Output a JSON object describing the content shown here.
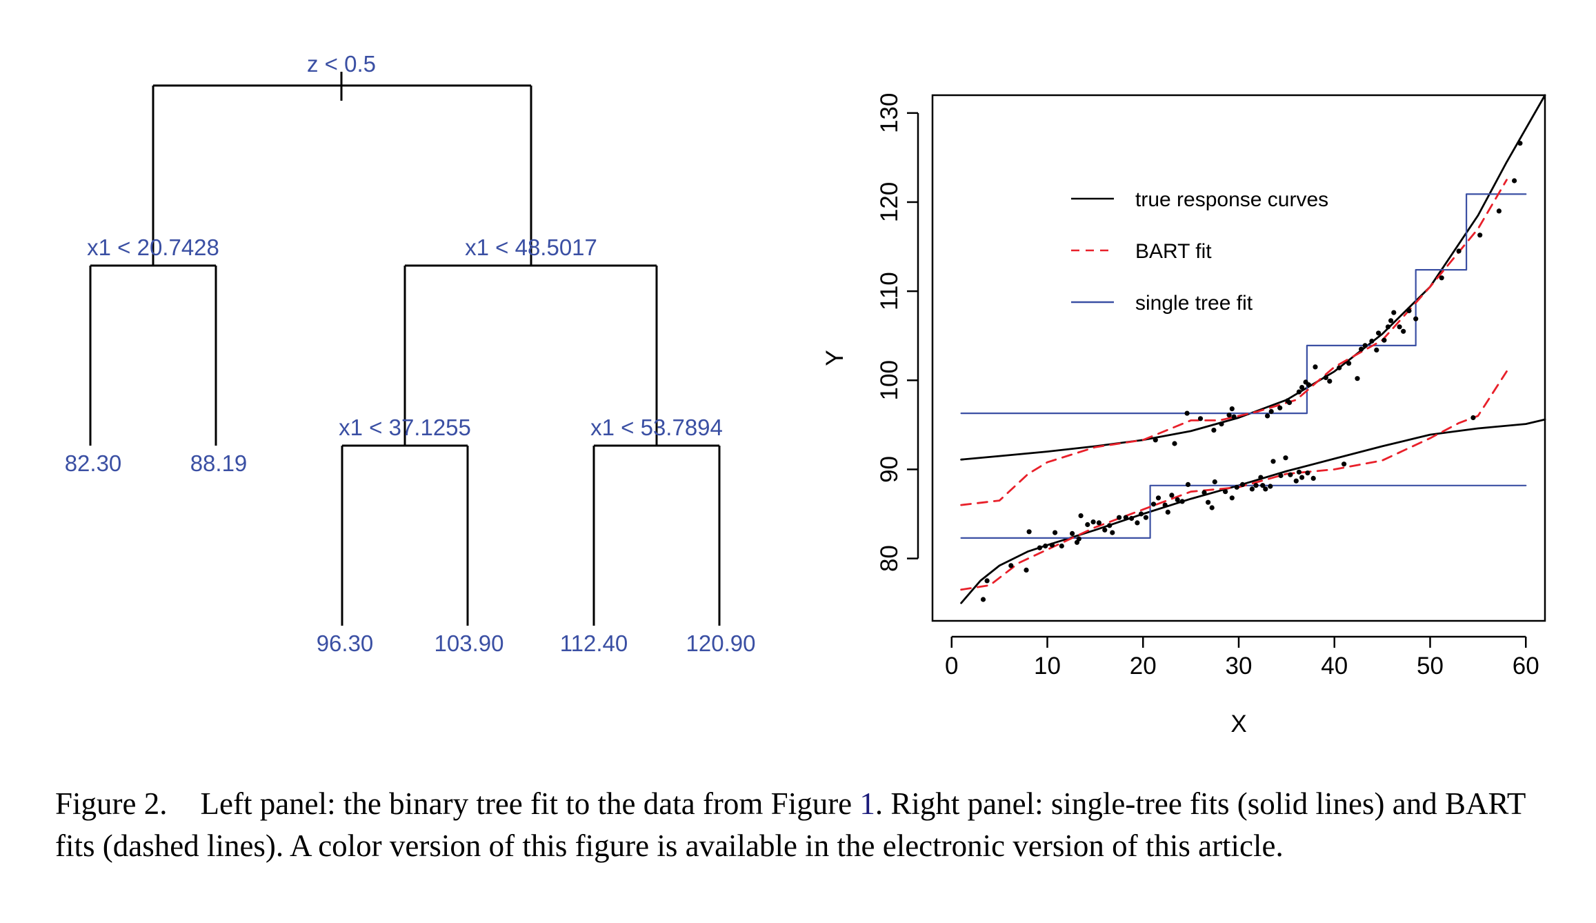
{
  "tree": {
    "root": {
      "split": "z < 0.5",
      "left": {
        "split": "x1 < 20.7428",
        "left": {
          "leaf": "82.30"
        },
        "right": {
          "leaf": "88.19"
        }
      },
      "right": {
        "split": "x1 < 48.5017",
        "left": {
          "split": "x1 < 37.1255",
          "left": {
            "leaf": "96.30"
          },
          "right": {
            "leaf": "103.90"
          }
        },
        "right": {
          "split": "x1 < 53.7894",
          "left": {
            "leaf": "112.40"
          },
          "right": {
            "leaf": "120.90"
          }
        }
      }
    }
  },
  "chart_data": {
    "type": "line",
    "xlabel": "X",
    "ylabel": "Y",
    "xlim": [
      -2,
      62
    ],
    "ylim": [
      73,
      132
    ],
    "xticks": [
      0,
      10,
      20,
      30,
      40,
      50,
      60
    ],
    "yticks": [
      80,
      90,
      100,
      110,
      120,
      130
    ],
    "grid": false,
    "legend_position": "top-left",
    "colors": {
      "truth": "#000000",
      "bart": "#e8202a",
      "tree": "#3a4fa3",
      "points": "#000000"
    },
    "legend": [
      {
        "label": "true response curves",
        "series": "truth"
      },
      {
        "label": "BART fit",
        "series": "bart"
      },
      {
        "label": "single tree fit",
        "series": "tree"
      }
    ],
    "series": [
      {
        "name": "true response curves",
        "key": "truth",
        "style": "solid",
        "x": [
          1,
          5,
          10,
          15,
          20,
          25,
          30,
          35,
          40,
          45,
          50,
          55,
          58,
          62
        ],
        "y": [
          91.1,
          91.5,
          92,
          92.6,
          93.3,
          94.3,
          95.8,
          97.8,
          101,
          105.2,
          110.5,
          118.5,
          124.5,
          132
        ]
      },
      {
        "name": "",
        "key": "truth",
        "style": "solid",
        "x": [
          1,
          3,
          5,
          8,
          10,
          15,
          20,
          25,
          30,
          35,
          40,
          45,
          50,
          55,
          60,
          62
        ],
        "y": [
          75,
          77.5,
          79.2,
          80.8,
          81.5,
          83.2,
          85,
          86.7,
          88.2,
          89.8,
          91.2,
          92.6,
          93.9,
          94.6,
          95.1,
          95.6
        ]
      },
      {
        "name": "single tree fit",
        "key": "tree",
        "style": "step",
        "x": [
          1,
          37.1255,
          37.1255,
          48.5017,
          48.5017,
          53.7894,
          53.7894,
          60
        ],
        "y": [
          96.3,
          96.3,
          103.9,
          103.9,
          112.4,
          112.4,
          120.9,
          120.9
        ]
      },
      {
        "name": "",
        "key": "tree",
        "style": "step",
        "x": [
          1,
          20.7428,
          20.7428,
          60
        ],
        "y": [
          82.3,
          82.3,
          88.19,
          88.19
        ]
      },
      {
        "name": "BART fit",
        "key": "bart",
        "style": "dashed",
        "x": [
          1,
          5,
          8,
          10,
          15,
          20,
          25,
          28,
          32,
          36,
          40,
          45,
          50,
          55,
          58
        ],
        "y": [
          86,
          86.5,
          89.5,
          90.8,
          92.5,
          93.3,
          95.5,
          95.5,
          96.5,
          97.8,
          101.5,
          104.5,
          110.5,
          117,
          122.5
        ]
      },
      {
        "name": "",
        "key": "bart",
        "style": "dashed",
        "x": [
          1,
          4,
          7,
          10,
          15,
          20,
          25,
          30,
          35,
          40,
          45,
          50,
          53,
          55,
          58
        ],
        "y": [
          76.5,
          77,
          79.5,
          81,
          83.5,
          85.5,
          87.5,
          88,
          89.5,
          90,
          91,
          93.5,
          95.2,
          96,
          101
        ]
      }
    ],
    "points": [
      [
        3.3,
        75.4
      ],
      [
        3.7,
        77.5
      ],
      [
        6.2,
        79.2
      ],
      [
        7.8,
        78.7
      ],
      [
        8.1,
        83.0
      ],
      [
        9.2,
        81.2
      ],
      [
        9.8,
        81.4
      ],
      [
        10.5,
        81.5
      ],
      [
        10.8,
        82.9
      ],
      [
        11.5,
        81.4
      ],
      [
        12.6,
        82.8
      ],
      [
        13.1,
        81.8
      ],
      [
        13.3,
        82.2
      ],
      [
        13.5,
        84.8
      ],
      [
        14.2,
        83.8
      ],
      [
        14.8,
        84.1
      ],
      [
        15.4,
        84.0
      ],
      [
        16.0,
        83.2
      ],
      [
        16.5,
        83.7
      ],
      [
        16.8,
        82.9
      ],
      [
        17.5,
        84.6
      ],
      [
        18.2,
        84.6
      ],
      [
        18.8,
        84.5
      ],
      [
        19.4,
        84.0
      ],
      [
        19.8,
        85.0
      ],
      [
        20.3,
        84.6
      ],
      [
        21.1,
        86.1
      ],
      [
        21.6,
        86.8
      ],
      [
        22.3,
        86.0
      ],
      [
        22.6,
        85.2
      ],
      [
        23.0,
        87.1
      ],
      [
        23.6,
        86.6
      ],
      [
        24.1,
        86.4
      ],
      [
        24.7,
        88.3
      ],
      [
        26.4,
        87.4
      ],
      [
        26.8,
        86.3
      ],
      [
        27.2,
        85.7
      ],
      [
        27.5,
        88.6
      ],
      [
        28.6,
        87.5
      ],
      [
        29.3,
        86.8
      ],
      [
        29.8,
        88.0
      ],
      [
        30.4,
        88.3
      ],
      [
        31.4,
        87.8
      ],
      [
        31.8,
        88.2
      ],
      [
        32.3,
        89.1
      ],
      [
        32.8,
        87.8
      ],
      [
        33.3,
        88.1
      ],
      [
        33.6,
        90.9
      ],
      [
        34.4,
        89.3
      ],
      [
        34.9,
        91.3
      ],
      [
        35.4,
        89.4
      ],
      [
        36.0,
        88.7
      ],
      [
        36.3,
        89.7
      ],
      [
        36.6,
        89.1
      ],
      [
        37.2,
        89.6
      ],
      [
        37.8,
        89.0
      ],
      [
        41.0,
        90.6
      ],
      [
        21.3,
        93.3
      ],
      [
        23.3,
        92.9
      ],
      [
        24.6,
        96.3
      ],
      [
        26.0,
        95.7
      ],
      [
        27.4,
        94.4
      ],
      [
        28.2,
        95.1
      ],
      [
        29.0,
        96.1
      ],
      [
        29.5,
        95.9
      ],
      [
        29.3,
        96.8
      ],
      [
        33.0,
        96.0
      ],
      [
        33.4,
        96.5
      ],
      [
        34.3,
        96.9
      ],
      [
        35.1,
        97.7
      ],
      [
        35.3,
        97.5
      ],
      [
        36.3,
        98.7
      ],
      [
        36.6,
        99.2
      ],
      [
        37.0,
        99.8
      ],
      [
        37.3,
        99.5
      ],
      [
        38.0,
        101.5
      ],
      [
        39.1,
        100.3
      ],
      [
        39.5,
        99.9
      ],
      [
        40.5,
        101.4
      ],
      [
        41.5,
        101.9
      ],
      [
        42.4,
        100.2
      ],
      [
        42.8,
        103.5
      ],
      [
        43.2,
        103.9
      ],
      [
        43.9,
        104.4
      ],
      [
        44.4,
        103.4
      ],
      [
        44.6,
        105.3
      ],
      [
        45.2,
        104.5
      ],
      [
        45.6,
        106.0
      ],
      [
        45.9,
        106.7
      ],
      [
        46.2,
        107.6
      ],
      [
        46.8,
        106.0
      ],
      [
        47.2,
        105.5
      ],
      [
        47.8,
        107.8
      ],
      [
        48.5,
        106.9
      ],
      [
        51.2,
        111.5
      ],
      [
        53.0,
        114.5
      ],
      [
        55.2,
        116.3
      ],
      [
        57.2,
        119.0
      ],
      [
        58.8,
        122.4
      ],
      [
        59.4,
        126.6
      ],
      [
        54.5,
        95.8
      ],
      [
        32.5,
        88.2
      ]
    ]
  },
  "caption": {
    "label": "Figure 2.",
    "text_before": "Left panel: the binary tree fit to the data from Figure ",
    "figure_ref": "1",
    "text_after": ". Right panel: single-tree fits (solid lines) and BART fits (dashed lines). A color version of this figure is available in the electronic version of this article."
  }
}
